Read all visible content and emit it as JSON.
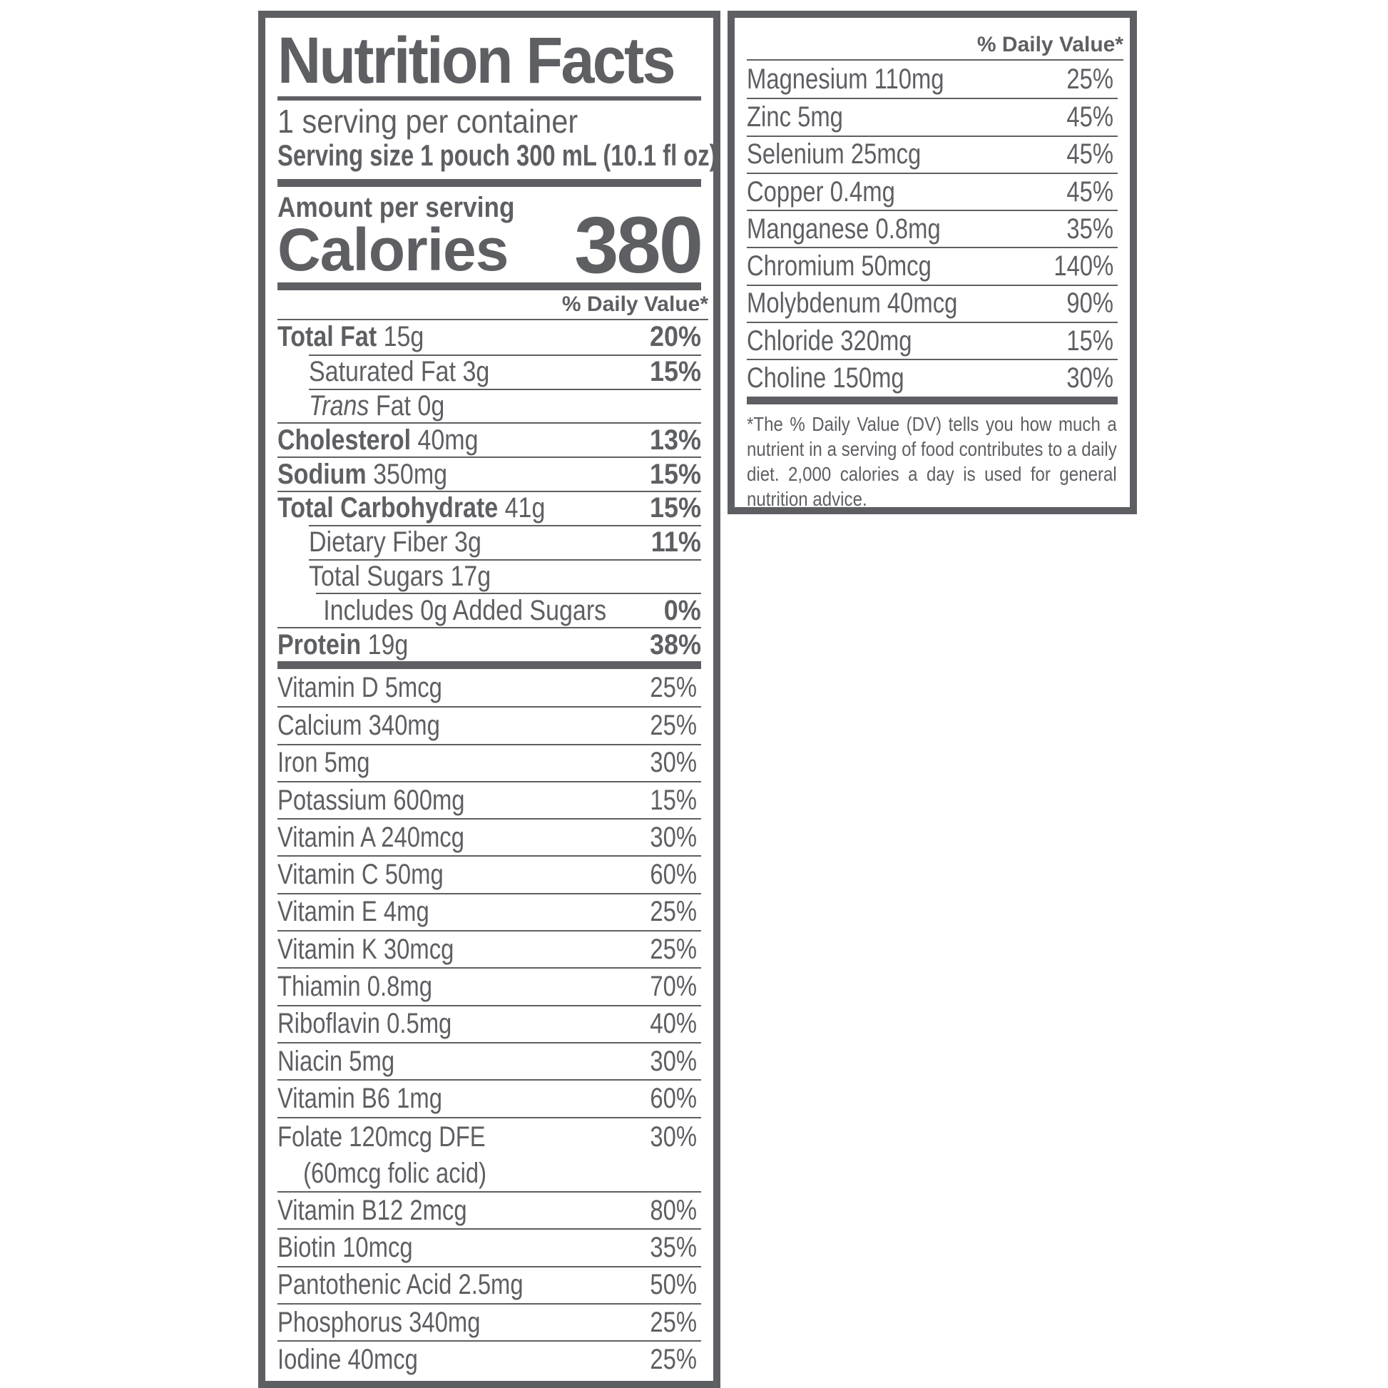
{
  "header": {
    "title": "Nutrition Facts",
    "servings": "1 serving per container",
    "serving_size": "Serving size 1 pouch 300 mL (10.1 fl oz)",
    "amount_per_serving": "Amount per serving",
    "calories_label": "Calories",
    "calories_value": "380",
    "dv_header": "% Daily Value*"
  },
  "nutrients": [
    {
      "name": "Total Fat",
      "amount": " 15g",
      "dv": "20%",
      "bold": true,
      "indent": 0
    },
    {
      "name": "",
      "amount": "Saturated Fat 3g",
      "dv": "15%",
      "bold": false,
      "indent": 1
    },
    {
      "name": "",
      "italic": "Trans",
      "amount": " Fat 0g",
      "dv": "",
      "bold": false,
      "indent": 1
    },
    {
      "name": "Cholesterol",
      "amount": " 40mg",
      "dv": "13%",
      "bold": true,
      "indent": 0
    },
    {
      "name": "Sodium",
      "amount": " 350mg",
      "dv": "15%",
      "bold": true,
      "indent": 0
    },
    {
      "name": "Total Carbohydrate",
      "amount": " 41g",
      "dv": "15%",
      "bold": true,
      "indent": 0
    },
    {
      "name": "",
      "amount": "Dietary Fiber 3g",
      "dv": "11%",
      "bold": false,
      "indent": 1
    },
    {
      "name": "",
      "amount": "Total Sugars 17g",
      "dv": "",
      "bold": false,
      "indent": 1
    },
    {
      "name": "",
      "amount": "Includes 0g Added Sugars",
      "dv": "0%",
      "bold": false,
      "indent": 2
    },
    {
      "name": "Protein",
      "amount": " 19g",
      "dv": "38%",
      "bold": true,
      "indent": 0
    }
  ],
  "vitamins": [
    {
      "label": "Vitamin D 5mcg",
      "dv": "25%"
    },
    {
      "label": "Calcium 340mg",
      "dv": "25%"
    },
    {
      "label": "Iron 5mg",
      "dv": "30%"
    },
    {
      "label": "Potassium 600mg",
      "dv": "15%"
    },
    {
      "label": "Vitamin A 240mcg",
      "dv": "30%"
    },
    {
      "label": "Vitamin C 50mg",
      "dv": "60%"
    },
    {
      "label": "Vitamin E 4mg",
      "dv": "25%"
    },
    {
      "label": "Vitamin K 30mcg",
      "dv": "25%"
    },
    {
      "label": "Thiamin 0.8mg",
      "dv": "70%"
    },
    {
      "label": "Riboflavin 0.5mg",
      "dv": "40%"
    },
    {
      "label": "Niacin 5mg",
      "dv": "30%"
    },
    {
      "label": "Vitamin B6 1mg",
      "dv": "60%"
    },
    {
      "label": "Folate 120mcg DFE",
      "sub": "(60mcg folic acid)",
      "dv": "30%"
    },
    {
      "label": "Vitamin B12 2mcg",
      "dv": "80%"
    },
    {
      "label": "Biotin 10mcg",
      "dv": "35%"
    },
    {
      "label": "Pantothenic Acid 2.5mg",
      "dv": "50%"
    },
    {
      "label": "Phosphorus 340mg",
      "dv": "25%"
    },
    {
      "label": "Iodine 40mcg",
      "dv": "25%"
    }
  ],
  "right_panel": {
    "dv_header": "% Daily Value*",
    "minerals": [
      {
        "label": "Magnesium 110mg",
        "dv": "25%"
      },
      {
        "label": "Zinc 5mg",
        "dv": "45%"
      },
      {
        "label": "Selenium 25mcg",
        "dv": "45%"
      },
      {
        "label": "Copper 0.4mg",
        "dv": "45%"
      },
      {
        "label": "Manganese 0.8mg",
        "dv": "35%"
      },
      {
        "label": "Chromium 50mcg",
        "dv": "140%"
      },
      {
        "label": "Molybdenum 40mcg",
        "dv": "90%"
      },
      {
        "label": "Chloride 320mg",
        "dv": "15%"
      },
      {
        "label": "Choline 150mg",
        "dv": "30%"
      }
    ],
    "footnote": "*The % Daily Value (DV) tells you how much a nutrient in a serving of food contributes to a daily diet. 2,000 calories a day is used for general nutrition advice."
  },
  "colors": {
    "ink": "#5d5f63",
    "background": "#ffffff"
  }
}
